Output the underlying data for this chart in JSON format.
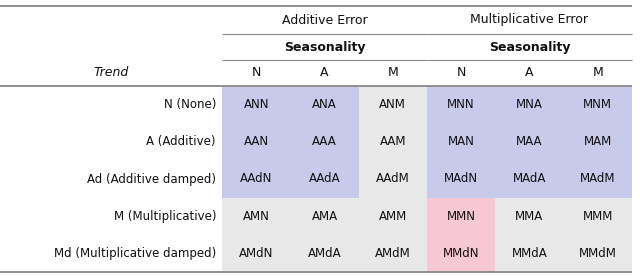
{
  "trend_labels": [
    "N (None)",
    "A (Additive)",
    "Ad (Additive damped)",
    "M (Multiplicative)",
    "Md (Multiplicative damped)"
  ],
  "seasonality_labels": [
    "N",
    "A",
    "M"
  ],
  "additive_error_cells": [
    [
      "ANN",
      "ANA",
      "ANM"
    ],
    [
      "AAN",
      "AAA",
      "AAM"
    ],
    [
      "AAdN",
      "AAdA",
      "AAdM"
    ],
    [
      "AMN",
      "AMA",
      "AMM"
    ],
    [
      "AMdN",
      "AMdA",
      "AMdM"
    ]
  ],
  "multiplicative_error_cells": [
    [
      "MNN",
      "MNA",
      "MNM"
    ],
    [
      "MAN",
      "MAA",
      "MAM"
    ],
    [
      "MAdN",
      "MAdA",
      "MAdM"
    ],
    [
      "MMN",
      "MMA",
      "MMM"
    ],
    [
      "MMdN",
      "MMdA",
      "MMdM"
    ]
  ],
  "cell_colors": [
    [
      "#c8caec",
      "#c8caec",
      "#e8e8e8",
      "#c8caec",
      "#c8caec",
      "#c8caec"
    ],
    [
      "#c8caec",
      "#c8caec",
      "#e8e8e8",
      "#c8caec",
      "#c8caec",
      "#c8caec"
    ],
    [
      "#c8caec",
      "#c8caec",
      "#e8e8e8",
      "#c8caec",
      "#c8caec",
      "#c8caec"
    ],
    [
      "#e8e8e8",
      "#e8e8e8",
      "#e8e8e8",
      "#f5c8d4",
      "#e8e8e8",
      "#e8e8e8"
    ],
    [
      "#e8e8e8",
      "#e8e8e8",
      "#e8e8e8",
      "#f5c8d4",
      "#e8e8e8",
      "#e8e8e8"
    ]
  ],
  "bg_color": "#ffffff",
  "line_color": "#888888",
  "text_color": "#111111"
}
